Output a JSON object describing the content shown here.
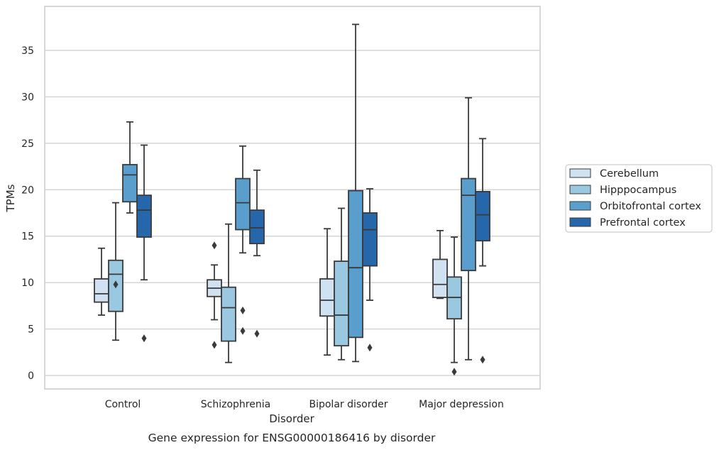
{
  "chart_data": {
    "type": "box",
    "caption": "Gene expression for ENSG00000186416 by disorder",
    "xlabel": "Disorder",
    "ylabel": "TPMs",
    "ylim": [
      -1.4,
      39.8
    ],
    "yticks": [
      "0",
      "5",
      "10",
      "15",
      "20",
      "25",
      "30",
      "35"
    ],
    "grid": "horizontal",
    "legend_position": "right",
    "categories": [
      "Control",
      "Schizophrenia",
      "Bipolar disorder",
      "Major depression"
    ],
    "series": [
      {
        "name": "Cerebellum",
        "color": "#d0e1f2",
        "boxes": [
          {
            "whislo": 6.5,
            "q1": 7.9,
            "med": 8.8,
            "q3": 10.4,
            "whishi": 13.7,
            "fliers": []
          },
          {
            "whislo": 6.0,
            "q1": 8.5,
            "med": 9.4,
            "q3": 10.3,
            "whishi": 11.9,
            "fliers": [
              14.0,
              3.3
            ]
          },
          {
            "whislo": 2.2,
            "q1": 6.4,
            "med": 8.1,
            "q3": 10.4,
            "whishi": 15.8,
            "fliers": []
          },
          {
            "whislo": 8.3,
            "q1": 8.4,
            "med": 9.8,
            "q3": 12.5,
            "whishi": 15.6,
            "fliers": []
          }
        ]
      },
      {
        "name": "Hipppocampus",
        "color": "#9ac8e0",
        "boxes": [
          {
            "whislo": 3.8,
            "q1": 6.9,
            "med": 10.9,
            "q3": 12.4,
            "whishi": 18.6,
            "fliers": [
              9.8
            ]
          },
          {
            "whislo": 1.4,
            "q1": 3.7,
            "med": 7.3,
            "q3": 9.5,
            "whishi": 16.3,
            "fliers": []
          },
          {
            "whislo": 1.7,
            "q1": 3.2,
            "med": 6.5,
            "q3": 12.3,
            "whishi": 18.0,
            "fliers": []
          },
          {
            "whislo": 1.4,
            "q1": 6.1,
            "med": 8.4,
            "q3": 10.6,
            "whishi": 14.9,
            "fliers": [
              0.4
            ]
          }
        ]
      },
      {
        "name": "Orbitofrontal cortex",
        "color": "#5a9ecd",
        "boxes": [
          {
            "whislo": 17.5,
            "q1": 18.7,
            "med": 21.6,
            "q3": 22.7,
            "whishi": 27.3,
            "fliers": []
          },
          {
            "whislo": 13.2,
            "q1": 15.7,
            "med": 18.6,
            "q3": 21.2,
            "whishi": 24.7,
            "fliers": [
              7.0,
              4.8
            ]
          },
          {
            "whislo": 1.5,
            "q1": 4.1,
            "med": 11.6,
            "q3": 19.9,
            "whishi": 37.8,
            "fliers": []
          },
          {
            "whislo": 1.7,
            "q1": 11.3,
            "med": 19.4,
            "q3": 21.2,
            "whishi": 29.9,
            "fliers": []
          }
        ]
      },
      {
        "name": "Prefrontal cortex",
        "color": "#2666aa",
        "boxes": [
          {
            "whislo": 10.3,
            "q1": 14.9,
            "med": 17.8,
            "q3": 19.4,
            "whishi": 24.8,
            "fliers": [
              4.0
            ]
          },
          {
            "whislo": 12.9,
            "q1": 14.2,
            "med": 15.9,
            "q3": 17.8,
            "whishi": 22.1,
            "fliers": [
              4.5
            ]
          },
          {
            "whislo": 8.1,
            "q1": 11.8,
            "med": 15.7,
            "q3": 17.5,
            "whishi": 20.1,
            "fliers": [
              3.0
            ]
          },
          {
            "whislo": 11.8,
            "q1": 14.5,
            "med": 17.3,
            "q3": 19.8,
            "whishi": 25.5,
            "fliers": [
              1.7
            ]
          }
        ]
      }
    ]
  }
}
